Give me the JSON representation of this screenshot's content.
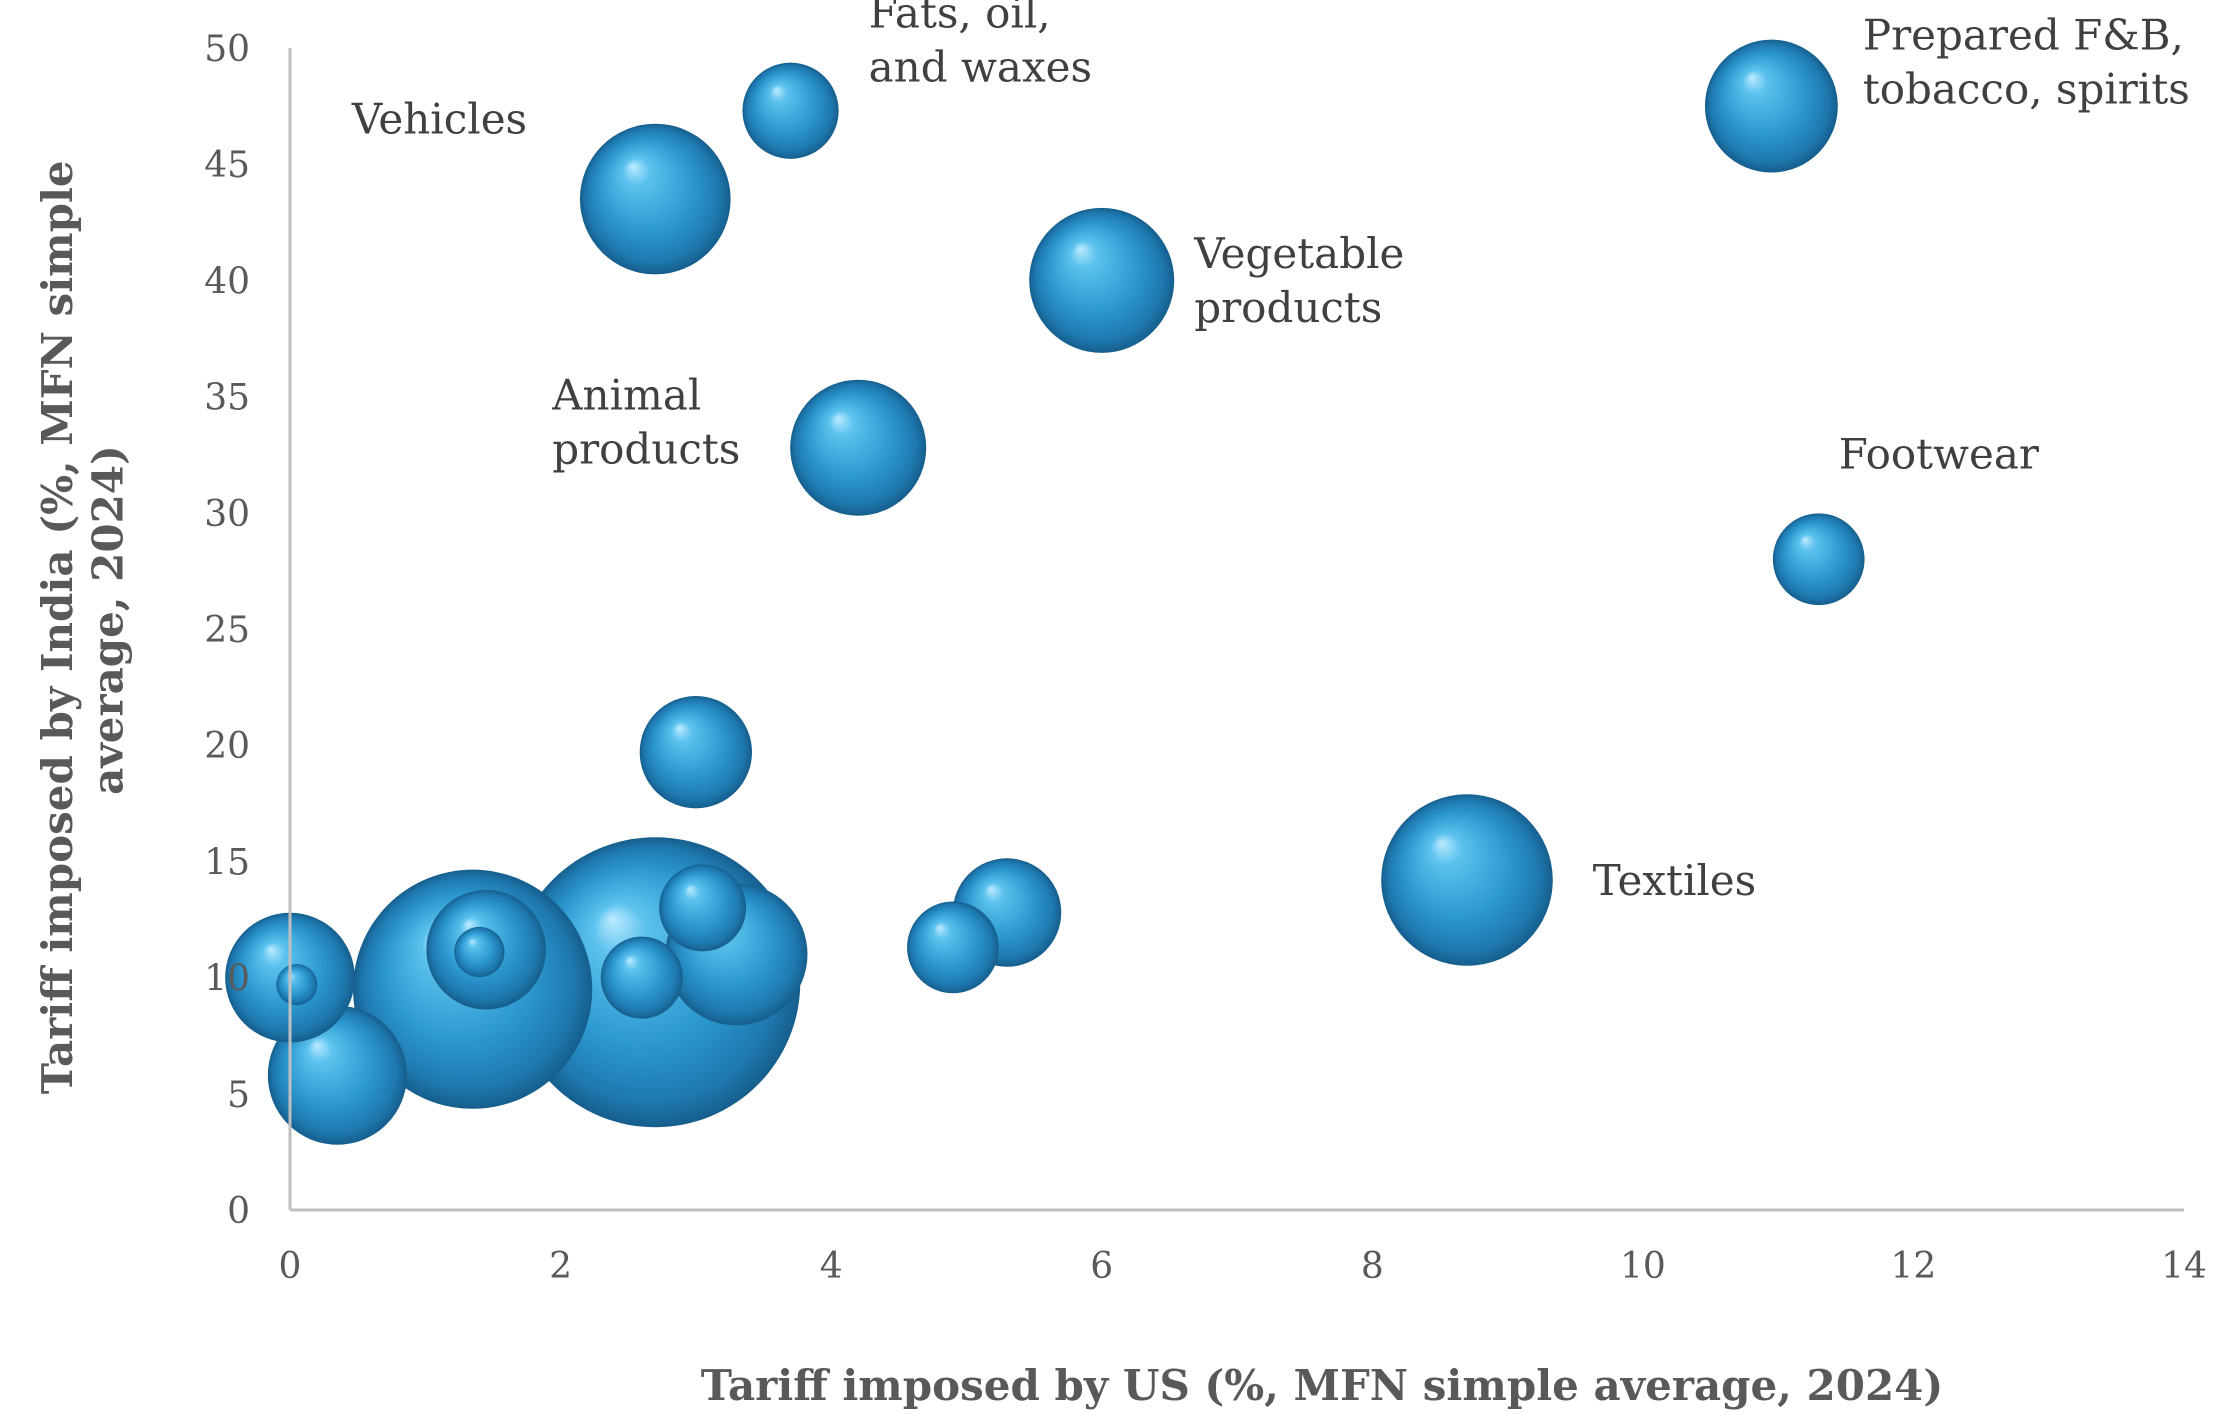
{
  "chart_data": {
    "type": "scatter",
    "title": "",
    "xlabel": "Tariff imposed by US (%, MFN simple average, 2024)",
    "ylabel_lines": [
      "Tariff imposed by India (%, MFN simple",
      "average, 2024)"
    ],
    "xlim": [
      0,
      14
    ],
    "ylim": [
      0,
      50
    ],
    "xticks": [
      0,
      2,
      4,
      6,
      8,
      10,
      12,
      14
    ],
    "yticks": [
      0,
      5,
      10,
      15,
      20,
      25,
      30,
      35,
      40,
      45,
      50
    ],
    "grid": false,
    "legend": "none",
    "bubble_color": "#2E9AD0",
    "points": [
      {
        "x": 2.7,
        "y": 9.8,
        "size": 100
      },
      {
        "x": 1.35,
        "y": 9.5,
        "size": 68
      },
      {
        "x": 0.35,
        "y": 5.8,
        "size": 23
      },
      {
        "x": 0.0,
        "y": 10.0,
        "size": 20
      },
      {
        "x": 3.3,
        "y": 11.0,
        "size": 24
      },
      {
        "x": 1.45,
        "y": 11.2,
        "size": 17
      },
      {
        "x": 2.6,
        "y": 10.0,
        "size": 8
      },
      {
        "x": 8.7,
        "y": 14.2,
        "size": 35,
        "label": [
          "Textiles"
        ]
      },
      {
        "x": 5.3,
        "y": 12.8,
        "size": 14
      },
      {
        "x": 4.9,
        "y": 11.3,
        "size": 10
      },
      {
        "x": 3.05,
        "y": 13.0,
        "size": 9
      },
      {
        "x": 3.0,
        "y": 19.7,
        "size": 15
      },
      {
        "x": 11.3,
        "y": 28.0,
        "size": 10,
        "label": [
          "Footwear"
        ]
      },
      {
        "x": 4.2,
        "y": 32.8,
        "size": 22,
        "label": [
          "Animal",
          "products"
        ]
      },
      {
        "x": 6.0,
        "y": 40.0,
        "size": 25,
        "label": [
          "Vegetable",
          "products"
        ]
      },
      {
        "x": 2.7,
        "y": 43.5,
        "size": 27,
        "label": [
          "Vehicles"
        ]
      },
      {
        "x": 3.7,
        "y": 47.3,
        "size": 11,
        "label": [
          "Fats, oil,",
          "and waxes"
        ]
      },
      {
        "x": 10.95,
        "y": 47.5,
        "size": 21,
        "label": [
          "Prepared F&B,",
          "tobacco, spirits"
        ]
      },
      {
        "x": 1.4,
        "y": 11.1,
        "size": 3
      },
      {
        "x": 0.05,
        "y": 9.7,
        "size": 2
      }
    ]
  }
}
